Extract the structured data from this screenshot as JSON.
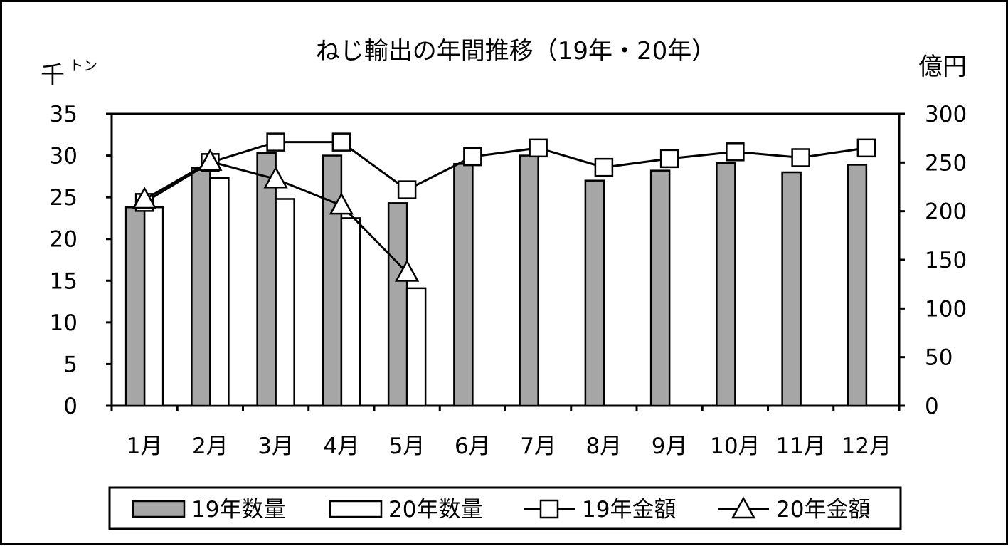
{
  "chart_data": {
    "type": "bar",
    "title": "ねじ輸出の年間推移（19年・20年）",
    "y_left_unit_main": "千",
    "y_left_unit_small": "トン",
    "y_right_unit": "億円",
    "categories": [
      "1月",
      "2月",
      "3月",
      "4月",
      "5月",
      "6月",
      "7月",
      "8月",
      "9月",
      "10月",
      "11月",
      "12月"
    ],
    "y_left": {
      "min": 0,
      "max": 35,
      "step": 5,
      "ticks": [
        "0",
        "5",
        "10",
        "15",
        "20",
        "25",
        "30",
        "35"
      ]
    },
    "y_right": {
      "min": 0,
      "max": 300,
      "step": 50,
      "ticks": [
        "0",
        "50",
        "100",
        "150",
        "200",
        "250",
        "300"
      ]
    },
    "grid": false,
    "legend_position": "bottom",
    "series": [
      {
        "name": "19年数量",
        "type": "bar",
        "axis": "left",
        "color": "#a6a6a6",
        "values": [
          23.8,
          28.5,
          30.3,
          30.0,
          24.3,
          29.0,
          30.0,
          27.0,
          28.2,
          29.1,
          28.0,
          28.9
        ]
      },
      {
        "name": "20年数量",
        "type": "bar",
        "axis": "left",
        "color": "#ffffff",
        "values": [
          23.8,
          27.3,
          24.8,
          22.5,
          14.1,
          null,
          null,
          null,
          null,
          null,
          null,
          null
        ]
      },
      {
        "name": "19年金額",
        "type": "line",
        "marker": "square",
        "axis": "right",
        "values": [
          209,
          250,
          271,
          271,
          222,
          256,
          265,
          245,
          254,
          261,
          255,
          265
        ]
      },
      {
        "name": "20年金額",
        "type": "line",
        "marker": "triangle",
        "axis": "right",
        "values": [
          212,
          251,
          233,
          206,
          137,
          null,
          null,
          null,
          null,
          null,
          null,
          null
        ]
      }
    ]
  }
}
